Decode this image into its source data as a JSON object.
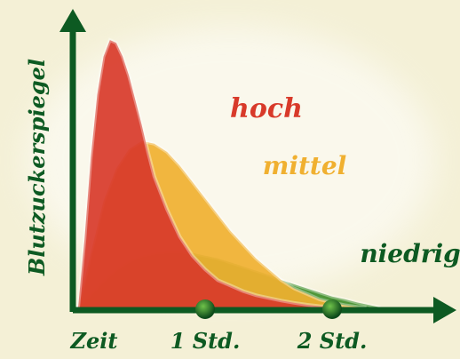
{
  "chart_data": {
    "type": "area",
    "title": "",
    "xlabel": "Zeit",
    "ylabel": "Blutzuckerspiegel",
    "x_ticks": [
      {
        "label": "1 Std.",
        "value": 1
      },
      {
        "label": "2 Std.",
        "value": 2
      }
    ],
    "xlim": [
      0,
      2.45
    ],
    "ylim": [
      0,
      1.05
    ],
    "grid": false,
    "legend": "inline labels next to curves",
    "series": [
      {
        "name": "niedrig",
        "color": "#3f8f2a",
        "x": [
          0,
          0.1,
          0.2,
          0.3,
          0.4,
          0.5,
          0.6,
          0.7,
          0.8,
          0.9,
          1.0,
          1.1,
          1.2,
          1.3,
          1.4,
          1.5,
          1.6,
          1.7,
          1.8,
          1.9,
          2.0,
          2.1,
          2.2,
          2.3,
          2.38
        ],
        "y": [
          0,
          0.05,
          0.1,
          0.14,
          0.17,
          0.19,
          0.2,
          0.205,
          0.205,
          0.2,
          0.19,
          0.18,
          0.165,
          0.15,
          0.135,
          0.12,
          0.1,
          0.085,
          0.07,
          0.055,
          0.04,
          0.03,
          0.018,
          0.008,
          0
        ]
      },
      {
        "name": "mittel",
        "color": "#f0b030",
        "x": [
          0,
          0.1,
          0.2,
          0.3,
          0.4,
          0.5,
          0.6,
          0.7,
          0.8,
          0.9,
          1.0,
          1.1,
          1.2,
          1.3,
          1.4,
          1.5,
          1.6,
          1.7,
          1.8,
          1.9,
          2.0,
          2.1,
          2.2,
          2.27
        ],
        "y": [
          0,
          0.2,
          0.39,
          0.51,
          0.58,
          0.61,
          0.6,
          0.57,
          0.52,
          0.46,
          0.4,
          0.34,
          0.28,
          0.23,
          0.18,
          0.14,
          0.1,
          0.07,
          0.05,
          0.03,
          0.018,
          0.008,
          0.002,
          0
        ]
      },
      {
        "name": "hoch",
        "color": "#d83a2a",
        "x": [
          0,
          0.05,
          0.1,
          0.15,
          0.2,
          0.25,
          0.3,
          0.35,
          0.4,
          0.45,
          0.5,
          0.55,
          0.6,
          0.7,
          0.8,
          0.9,
          1.0,
          1.1,
          1.2,
          1.3,
          1.4,
          1.5,
          1.6,
          1.7,
          1.8,
          1.9,
          2.0,
          2.08
        ],
        "y": [
          0,
          0.25,
          0.55,
          0.78,
          0.92,
          0.98,
          0.97,
          0.92,
          0.85,
          0.76,
          0.67,
          0.57,
          0.48,
          0.36,
          0.26,
          0.19,
          0.14,
          0.1,
          0.08,
          0.06,
          0.045,
          0.035,
          0.025,
          0.017,
          0.01,
          0.005,
          0.002,
          0
        ]
      }
    ]
  }
}
